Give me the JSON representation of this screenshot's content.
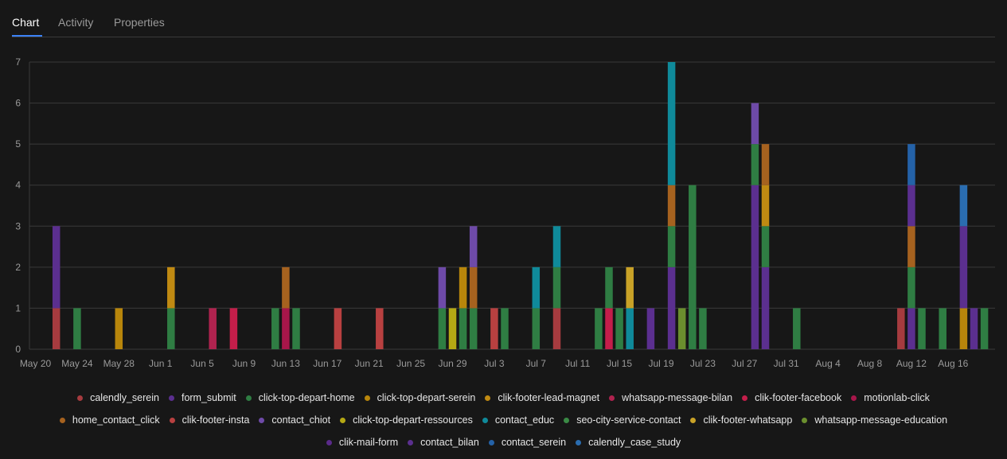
{
  "tabs": [
    {
      "label": "Chart",
      "active": true
    },
    {
      "label": "Activity",
      "active": false
    },
    {
      "label": "Properties",
      "active": false
    }
  ],
  "colors": {
    "accent": "#3b82f6",
    "background": "#171717"
  },
  "chart_data": {
    "type": "bar",
    "stacked": true,
    "title": "",
    "xlabel": "",
    "ylabel": "",
    "ylim": [
      0,
      7
    ],
    "y_ticks": [
      "0",
      "1",
      "2",
      "3",
      "4",
      "5",
      "6",
      "7"
    ],
    "x_range_days": [
      "May 20",
      "Aug 19"
    ],
    "x_tick_labels": [
      "May 20",
      "May 24",
      "May 28",
      "Jun 1",
      "Jun 5",
      "Jun 9",
      "Jun 13",
      "Jun 17",
      "Jun 21",
      "Jun 25",
      "Jun 29",
      "Jul 3",
      "Jul 7",
      "Jul 11",
      "Jul 15",
      "Jul 19",
      "Jul 23",
      "Jul 27",
      "Jul 31",
      "Aug 4",
      "Aug 8",
      "Aug 12",
      "Aug 16"
    ],
    "grid": true,
    "legend_position": "bottom",
    "series": [
      {
        "name": "calendly_serein",
        "color": "#a63b3f"
      },
      {
        "name": "form_submit",
        "color": "#5b2f8f"
      },
      {
        "name": "click-top-depart-home",
        "color": "#2f7d43"
      },
      {
        "name": "click-top-depart-serein",
        "color": "#b8860b"
      },
      {
        "name": "clik-footer-lead-magnet",
        "color": "#c08a12"
      },
      {
        "name": "whatsapp-message-bilan",
        "color": "#b0234f"
      },
      {
        "name": "clik-footer-facebook",
        "color": "#c41e4a"
      },
      {
        "name": "motionlab-click",
        "color": "#a8164a"
      },
      {
        "name": "home_contact_click",
        "color": "#a6621f"
      },
      {
        "name": "clik-footer-insta",
        "color": "#b84040"
      },
      {
        "name": "contact_chiot",
        "color": "#6e4aa8"
      },
      {
        "name": "click-top-depart-ressources",
        "color": "#b5a814"
      },
      {
        "name": "contact_educ",
        "color": "#0f8a9a"
      },
      {
        "name": "seo-city-service-contact",
        "color": "#3a8a45"
      },
      {
        "name": "clik-footer-whatsapp",
        "color": "#c9a227"
      },
      {
        "name": "whatsapp-message-education",
        "color": "#6b8f2e"
      },
      {
        "name": "clik-mail-form",
        "color": "#5a2a8a"
      },
      {
        "name": "contact_bilan",
        "color": "#5b2f8f"
      },
      {
        "name": "contact_serein",
        "color": "#2462a8"
      },
      {
        "name": "calendly_case_study",
        "color": "#2a6db0"
      }
    ],
    "bars": [
      {
        "date": "May 22",
        "stack": [
          {
            "series": "calendly_serein",
            "value": 1
          },
          {
            "series": "form_submit",
            "value": 2
          }
        ]
      },
      {
        "date": "May 24",
        "stack": [
          {
            "series": "click-top-depart-home",
            "value": 1
          }
        ]
      },
      {
        "date": "May 28",
        "stack": [
          {
            "series": "click-top-depart-serein",
            "value": 1
          }
        ]
      },
      {
        "date": "Jun 2",
        "stack": [
          {
            "series": "click-top-depart-home",
            "value": 1
          },
          {
            "series": "clik-footer-lead-magnet",
            "value": 1
          }
        ]
      },
      {
        "date": "Jun 6",
        "stack": [
          {
            "series": "whatsapp-message-bilan",
            "value": 1
          }
        ]
      },
      {
        "date": "Jun 8",
        "stack": [
          {
            "series": "clik-footer-facebook",
            "value": 1
          }
        ]
      },
      {
        "date": "Jun 12",
        "stack": [
          {
            "series": "click-top-depart-home",
            "value": 1
          }
        ]
      },
      {
        "date": "Jun 13",
        "stack": [
          {
            "series": "motionlab-click",
            "value": 1
          },
          {
            "series": "home_contact_click",
            "value": 1
          }
        ]
      },
      {
        "date": "Jun 14",
        "stack": [
          {
            "series": "click-top-depart-home",
            "value": 1
          }
        ]
      },
      {
        "date": "Jun 18",
        "stack": [
          {
            "series": "clik-footer-insta",
            "value": 1
          }
        ]
      },
      {
        "date": "Jun 22",
        "stack": [
          {
            "series": "clik-footer-insta",
            "value": 1
          }
        ]
      },
      {
        "date": "Jun 28",
        "stack": [
          {
            "series": "click-top-depart-home",
            "value": 1
          },
          {
            "series": "contact_chiot",
            "value": 1
          }
        ]
      },
      {
        "date": "Jun 29",
        "stack": [
          {
            "series": "click-top-depart-ressources",
            "value": 1
          }
        ]
      },
      {
        "date": "Jun 30",
        "stack": [
          {
            "series": "click-top-depart-home",
            "value": 1
          },
          {
            "series": "click-top-depart-serein",
            "value": 1
          }
        ]
      },
      {
        "date": "Jul 1",
        "stack": [
          {
            "series": "click-top-depart-home",
            "value": 1
          },
          {
            "series": "home_contact_click",
            "value": 1
          },
          {
            "series": "contact_chiot",
            "value": 1
          }
        ]
      },
      {
        "date": "Jul 3",
        "stack": [
          {
            "series": "clik-footer-insta",
            "value": 1
          }
        ]
      },
      {
        "date": "Jul 4",
        "stack": [
          {
            "series": "click-top-depart-home",
            "value": 1
          }
        ]
      },
      {
        "date": "Jul 7",
        "stack": [
          {
            "series": "click-top-depart-home",
            "value": 1
          },
          {
            "series": "contact_educ",
            "value": 1
          }
        ]
      },
      {
        "date": "Jul 9",
        "stack": [
          {
            "series": "calendly_serein",
            "value": 1
          },
          {
            "series": "click-top-depart-home",
            "value": 1
          },
          {
            "series": "contact_educ",
            "value": 1
          }
        ]
      },
      {
        "date": "Jul 13",
        "stack": [
          {
            "series": "click-top-depart-home",
            "value": 1
          }
        ]
      },
      {
        "date": "Jul 14",
        "stack": [
          {
            "series": "clik-footer-facebook",
            "value": 1
          },
          {
            "series": "click-top-depart-home",
            "value": 1
          }
        ]
      },
      {
        "date": "Jul 15",
        "stack": [
          {
            "series": "click-top-depart-home",
            "value": 1
          }
        ]
      },
      {
        "date": "Jul 16",
        "stack": [
          {
            "series": "contact_educ",
            "value": 1
          },
          {
            "series": "clik-footer-whatsapp",
            "value": 1
          }
        ]
      },
      {
        "date": "Jul 18",
        "stack": [
          {
            "series": "form_submit",
            "value": 1
          }
        ]
      },
      {
        "date": "Jul 20",
        "stack": [
          {
            "series": "form_submit",
            "value": 2
          },
          {
            "series": "click-top-depart-home",
            "value": 1
          },
          {
            "series": "home_contact_click",
            "value": 1
          },
          {
            "series": "contact_educ",
            "value": 3
          }
        ]
      },
      {
        "date": "Jul 21",
        "stack": [
          {
            "series": "whatsapp-message-education",
            "value": 1
          }
        ]
      },
      {
        "date": "Jul 22",
        "stack": [
          {
            "series": "click-top-depart-home",
            "value": 4
          }
        ]
      },
      {
        "date": "Jul 23",
        "stack": [
          {
            "series": "click-top-depart-home",
            "value": 1
          }
        ]
      },
      {
        "date": "Jul 28",
        "stack": [
          {
            "series": "form_submit",
            "value": 4
          },
          {
            "series": "click-top-depart-home",
            "value": 1
          },
          {
            "series": "contact_chiot",
            "value": 1
          }
        ]
      },
      {
        "date": "Jul 29",
        "stack": [
          {
            "series": "form_submit",
            "value": 2
          },
          {
            "series": "click-top-depart-home",
            "value": 1
          },
          {
            "series": "clik-footer-lead-magnet",
            "value": 1
          },
          {
            "series": "home_contact_click",
            "value": 1
          }
        ]
      },
      {
        "date": "Aug 1",
        "stack": [
          {
            "series": "click-top-depart-home",
            "value": 1
          }
        ]
      },
      {
        "date": "Aug 11",
        "stack": [
          {
            "series": "calendly_serein",
            "value": 1
          }
        ]
      },
      {
        "date": "Aug 12",
        "stack": [
          {
            "series": "form_submit",
            "value": 1
          },
          {
            "series": "click-top-depart-home",
            "value": 1
          },
          {
            "series": "home_contact_click",
            "value": 1
          },
          {
            "series": "contact_bilan",
            "value": 1
          },
          {
            "series": "contact_serein",
            "value": 1
          }
        ]
      },
      {
        "date": "Aug 13",
        "stack": [
          {
            "series": "click-top-depart-home",
            "value": 1
          }
        ]
      },
      {
        "date": "Aug 15",
        "stack": [
          {
            "series": "click-top-depart-home",
            "value": 1
          }
        ]
      },
      {
        "date": "Aug 17",
        "stack": [
          {
            "series": "click-top-depart-serein",
            "value": 1
          },
          {
            "series": "form_submit",
            "value": 2
          },
          {
            "series": "calendly_case_study",
            "value": 1
          }
        ]
      },
      {
        "date": "Aug 18",
        "stack": [
          {
            "series": "form_submit",
            "value": 1
          }
        ]
      },
      {
        "date": "Aug 19",
        "stack": [
          {
            "series": "click-top-depart-home",
            "value": 1
          }
        ]
      }
    ]
  },
  "legend_rows": [
    [
      "calendly_serein",
      "form_submit",
      "click-top-depart-home",
      "click-top-depart-serein",
      "clik-footer-lead-magnet",
      "whatsapp-message-bilan",
      "clik-footer-facebook",
      "motionlab-click"
    ],
    [
      "home_contact_click",
      "clik-footer-insta",
      "contact_chiot",
      "click-top-depart-ressources",
      "contact_educ",
      "seo-city-service-contact",
      "clik-footer-whatsapp",
      "whatsapp-message-education"
    ],
    [
      "clik-mail-form",
      "contact_bilan",
      "contact_serein",
      "calendly_case_study"
    ]
  ]
}
